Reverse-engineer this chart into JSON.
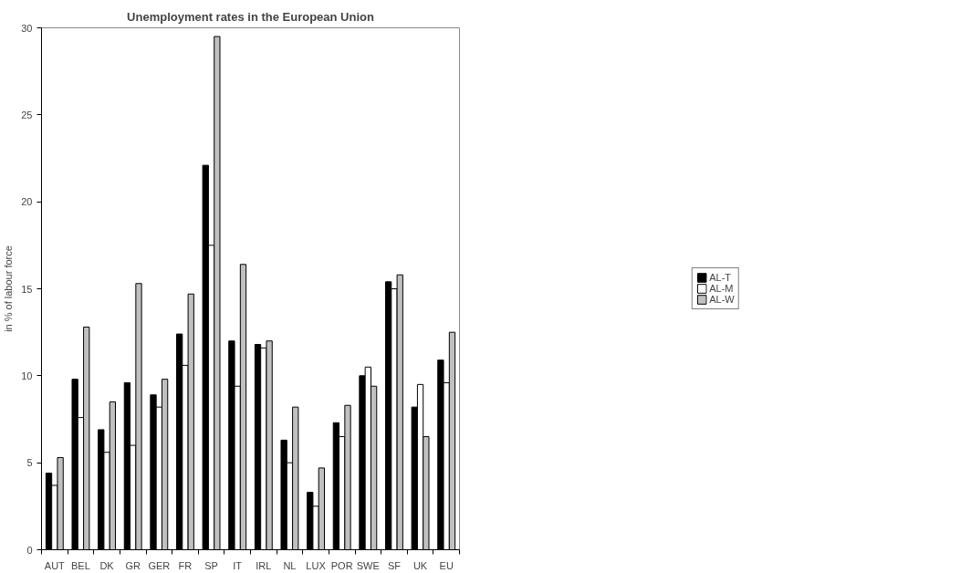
{
  "chart_data": {
    "type": "bar",
    "title": "Unemployment rates in the European Union",
    "ylabel": "in % of labour force",
    "categories": [
      "AUT",
      "BEL",
      "DK",
      "GR",
      "GER",
      "FR",
      "SP",
      "IT",
      "IRL",
      "NL",
      "LUX",
      "POR",
      "SWE",
      "SF",
      "UK",
      "EU"
    ],
    "series": [
      {
        "name": "AL-T",
        "color": "#000000",
        "values": [
          4.4,
          9.8,
          6.9,
          9.6,
          8.9,
          12.4,
          22.1,
          12.0,
          11.8,
          6.3,
          3.3,
          7.3,
          10.0,
          15.4,
          8.2,
          10.9
        ]
      },
      {
        "name": "AL-M",
        "color": "#ffffff",
        "values": [
          3.7,
          7.6,
          5.6,
          6.0,
          8.2,
          10.6,
          17.5,
          9.4,
          11.6,
          5.0,
          2.5,
          6.5,
          10.5,
          15.0,
          9.5,
          9.6
        ]
      },
      {
        "name": "AL-W",
        "color": "#c0c0c0",
        "values": [
          5.3,
          12.8,
          8.5,
          15.3,
          9.8,
          14.7,
          29.5,
          16.4,
          12.0,
          8.2,
          4.7,
          8.3,
          9.4,
          15.8,
          6.5,
          12.5
        ]
      }
    ],
    "ylim": [
      0,
      30
    ],
    "yticks": [
      0,
      5,
      10,
      15,
      20,
      25,
      30
    ],
    "grid": false,
    "legend": "right"
  }
}
